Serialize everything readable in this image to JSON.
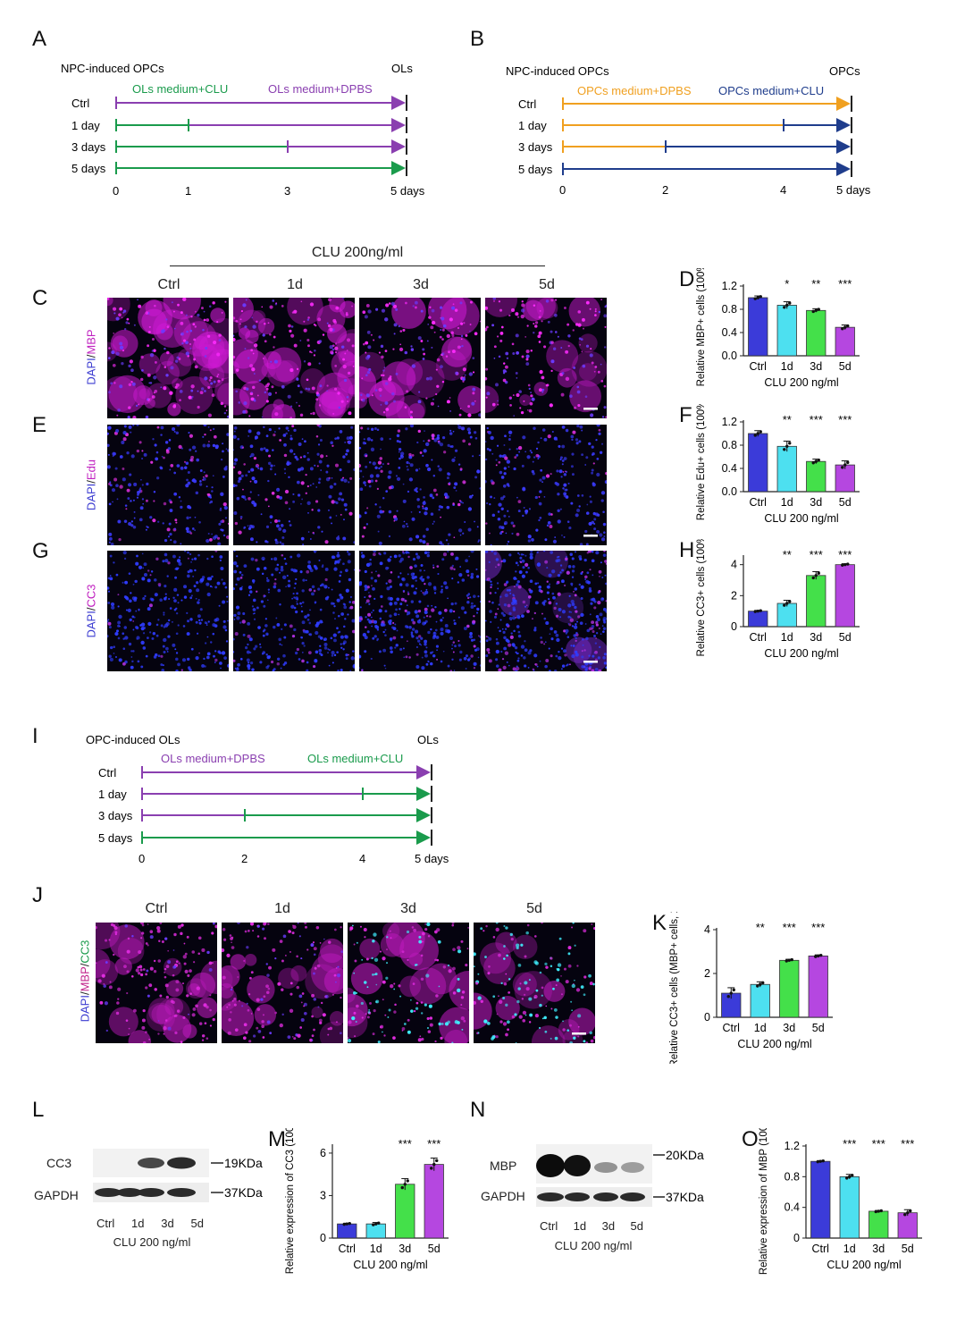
{
  "panels": {
    "A": {
      "letter": "A",
      "start_label": "NPC-induced OPCs",
      "end_label": "OLs",
      "seg_label_1": "OLs medium+CLU",
      "seg_label_2": "OLs medium+DPBS",
      "rows": [
        "Ctrl",
        "1 day",
        "3 days",
        "5 days"
      ],
      "ticks": [
        "0",
        "1",
        "3",
        "5 days"
      ],
      "switch_days": [
        0,
        1,
        3,
        5
      ],
      "colors": {
        "first": "#1a9b4c",
        "second": "#8a3fb0"
      }
    },
    "B": {
      "letter": "B",
      "start_label": "NPC-induced OPCs",
      "end_label": "OPCs",
      "seg_label_1": "OPCs medium+DPBS",
      "seg_label_2": "OPCs medium+CLU",
      "rows": [
        "Ctrl",
        "1 day",
        "3 days",
        "5 days"
      ],
      "ticks": [
        "0",
        "2",
        "4",
        "5 days"
      ],
      "colors": {
        "first": "#f0a020",
        "second": "#1f3d8c"
      }
    },
    "C": {
      "letter": "C",
      "treatment_header": "CLU 200ng/ml",
      "columns": [
        "Ctrl",
        "1d",
        "3d",
        "5d"
      ],
      "stain_a": "DAPI",
      "stain_b": "MBP"
    },
    "E": {
      "letter": "E",
      "stain_a": "DAPI",
      "stain_b": "Edu"
    },
    "G": {
      "letter": "G",
      "stain_a": "DAPI",
      "stain_b": "CC3"
    },
    "I": {
      "letter": "I",
      "start_label": "OPC-induced OLs",
      "end_label": "OLs",
      "seg_label_1": "OLs medium+DPBS",
      "seg_label_2": "OLs medium+CLU",
      "rows": [
        "Ctrl",
        "1 day",
        "3 days",
        "5 days"
      ],
      "ticks": [
        "0",
        "2",
        "4",
        "5 days"
      ],
      "colors": {
        "first": "#8a3fb0",
        "second": "#1a9b4c"
      }
    },
    "J": {
      "letter": "J",
      "columns": [
        "Ctrl",
        "1d",
        "3d",
        "5d"
      ],
      "stain_a": "DAPI",
      "stain_b": "MBP",
      "stain_c": "CC3"
    },
    "L": {
      "letter": "L",
      "band_top": "CC3",
      "band_bottom": "GAPDH",
      "kda_top": "19KDa",
      "kda_bottom": "37KDa",
      "lanes": [
        "Ctrl",
        "1d",
        "3d",
        "5d"
      ],
      "xlabel": "CLU 200 ng/ml"
    },
    "N": {
      "letter": "N",
      "band_top": "MBP",
      "band_bottom": "GAPDH",
      "kda_top": "20KDa",
      "kda_bottom": "37KDa",
      "lanes": [
        "Ctrl",
        "1d",
        "3d",
        "5d"
      ],
      "xlabel": "CLU 200 ng/ml"
    }
  },
  "colors": {
    "bar_ctrl": "#3b3bd9",
    "bar_1d": "#4de0f0",
    "bar_3d": "#44e04a",
    "bar_5d": "#b547e0"
  },
  "chart_data": [
    {
      "id": "D",
      "letter": "D",
      "type": "bar",
      "categories": [
        "Ctrl",
        "1d",
        "3d",
        "5d"
      ],
      "values": [
        1.0,
        0.87,
        0.78,
        0.49
      ],
      "errors": [
        0.03,
        0.06,
        0.03,
        0.04
      ],
      "significance": [
        "",
        "*",
        "**",
        "***"
      ],
      "ylabel": "Relative MBP+ cells (100%)",
      "xlabel": "CLU 200 ng/ml",
      "ylim": [
        0,
        1.2
      ],
      "yticks": [
        "0.0",
        "0.4",
        "0.8",
        "1.2"
      ],
      "ytick_values": [
        0,
        0.4,
        0.8,
        1.2
      ],
      "grid": false
    },
    {
      "id": "F",
      "letter": "F",
      "type": "bar",
      "categories": [
        "Ctrl",
        "1d",
        "3d",
        "5d"
      ],
      "values": [
        1.0,
        0.78,
        0.52,
        0.46
      ],
      "errors": [
        0.05,
        0.09,
        0.04,
        0.07
      ],
      "significance": [
        "",
        "**",
        "***",
        "***"
      ],
      "ylabel": "Relative Edu+ cells (100%)",
      "xlabel": "CLU 200 ng/ml",
      "ylim": [
        0,
        1.2
      ],
      "yticks": [
        "0.0",
        "0.4",
        "0.8",
        "1.2"
      ],
      "ytick_values": [
        0,
        0.4,
        0.8,
        1.2
      ],
      "grid": false
    },
    {
      "id": "H",
      "letter": "H",
      "type": "bar",
      "categories": [
        "Ctrl",
        "1d",
        "3d",
        "5d"
      ],
      "values": [
        1.0,
        1.5,
        3.3,
        4.0
      ],
      "errors": [
        0.05,
        0.2,
        0.25,
        0.06
      ],
      "significance": [
        "",
        "**",
        "***",
        "***"
      ],
      "ylabel": "Relative CC3+ cells (100%)",
      "xlabel": "CLU 200 ng/ml",
      "ylim": [
        0,
        4.5
      ],
      "yticks": [
        "0",
        "2",
        "4"
      ],
      "ytick_values": [
        0,
        2,
        4
      ],
      "grid": false
    },
    {
      "id": "K",
      "letter": "K",
      "type": "bar",
      "categories": [
        "Ctrl",
        "1d",
        "3d",
        "5d"
      ],
      "values": [
        1.1,
        1.5,
        2.6,
        2.8
      ],
      "errors": [
        0.25,
        0.12,
        0.05,
        0.05
      ],
      "significance": [
        "",
        "**",
        "***",
        "***"
      ],
      "ylabel": "Relative CC3+ cells (MBP+ cells, 100%)",
      "xlabel": "CLU 200 ng/ml",
      "ylim": [
        0,
        4
      ],
      "yticks": [
        "0",
        "2",
        "4"
      ],
      "ytick_values": [
        0,
        2,
        4
      ],
      "grid": false
    },
    {
      "id": "M",
      "letter": "M",
      "type": "bar",
      "categories": [
        "Ctrl",
        "1d",
        "3d",
        "5d"
      ],
      "values": [
        1.0,
        1.0,
        3.8,
        5.2
      ],
      "errors": [
        0.05,
        0.1,
        0.4,
        0.45
      ],
      "significance": [
        "",
        "",
        "***",
        "***"
      ],
      "ylabel": "Relative expression of CC3 (100%)",
      "xlabel": "CLU 200 ng/ml",
      "ylim": [
        0,
        6.5
      ],
      "yticks": [
        "0",
        "3",
        "6"
      ],
      "ytick_values": [
        0,
        3,
        6
      ],
      "grid": false
    },
    {
      "id": "O",
      "letter": "O",
      "type": "bar",
      "categories": [
        "Ctrl",
        "1d",
        "3d",
        "5d"
      ],
      "values": [
        1.0,
        0.8,
        0.35,
        0.33
      ],
      "errors": [
        0.01,
        0.03,
        0.01,
        0.04
      ],
      "significance": [
        "",
        "***",
        "***",
        "***"
      ],
      "ylabel": "Relative expression of MBP (100%)",
      "xlabel": "CLU 200 ng/ml",
      "ylim": [
        0,
        1.2
      ],
      "yticks": [
        "0",
        "0.4",
        "0.8",
        "1.2"
      ],
      "ytick_values": [
        0,
        0.4,
        0.8,
        1.2
      ],
      "grid": false
    }
  ]
}
